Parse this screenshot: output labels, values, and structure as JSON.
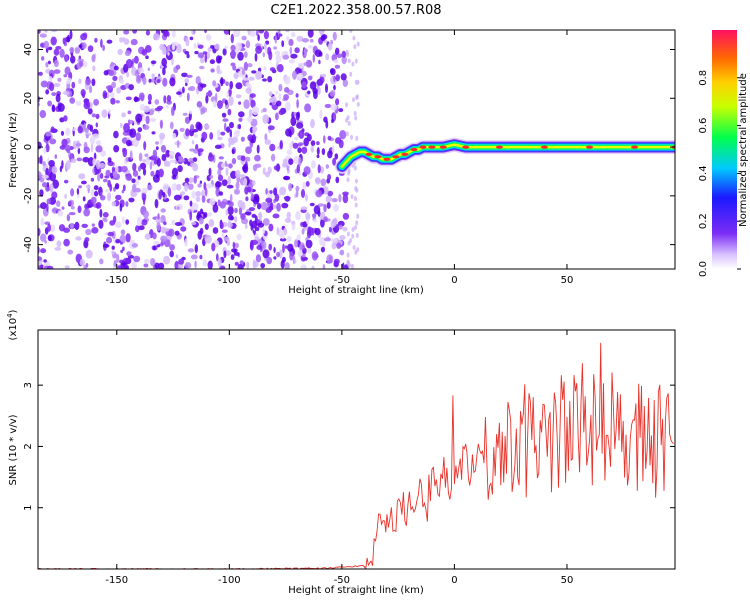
{
  "title": "C2E1.2022.358.00.57.R08",
  "chart_data": [
    {
      "type": "heatmap",
      "xlabel": "Height of straight line (km)",
      "ylabel": "Frequency (Hz)",
      "xlim": [
        -185,
        98
      ],
      "ylim": [
        -50,
        48
      ],
      "xticks": [
        -150,
        -100,
        -50,
        0,
        50
      ],
      "yticks": [
        -40,
        -20,
        0,
        20,
        40
      ],
      "noise_region_x": [
        -185,
        -48
      ],
      "ridge": {
        "x": [
          -50,
          -48,
          -46,
          -44,
          -42,
          -40,
          -38,
          -36,
          -34,
          -32,
          -30,
          -28,
          -26,
          -24,
          -22,
          -20,
          -18,
          -16,
          -14,
          -12,
          -10,
          -8,
          -5,
          0,
          5,
          10,
          20,
          30,
          40,
          50,
          60,
          70,
          80,
          90,
          98
        ],
        "freq": [
          -8,
          -6,
          -4,
          -3,
          -2,
          -2,
          -3,
          -4,
          -4,
          -5,
          -5,
          -5,
          -4,
          -3,
          -3,
          -2,
          -1,
          -1,
          0,
          0,
          0,
          0,
          0,
          1,
          0,
          0,
          0,
          0,
          0,
          0,
          0,
          0,
          0,
          0,
          0
        ]
      },
      "colorbar": {
        "label": "Normalized spectral amplitude",
        "ticks": [
          0.0,
          0.2,
          0.4,
          0.6,
          0.8
        ],
        "range": [
          0,
          1
        ]
      }
    },
    {
      "type": "line",
      "xlabel": "Height of straight line (km)",
      "ylabel": "SNR (10 * v/v)",
      "scale_label": "(x10",
      "scale_exponent": "4",
      "scale_close": ")",
      "xlim": [
        -185,
        98
      ],
      "ylim": [
        0,
        3.9
      ],
      "xticks": [
        -150,
        -100,
        -50,
        0,
        50
      ],
      "yticks": [
        1,
        2,
        3
      ],
      "color": "#e8322a",
      "x": [
        -185,
        -150,
        -100,
        -60,
        -40,
        -37,
        -35,
        -33,
        -31,
        -30,
        -28,
        -26,
        -24,
        -22,
        -20,
        -18,
        -16,
        -14,
        -12,
        -10,
        -8,
        -6,
        -4,
        -2,
        0,
        2,
        5,
        8,
        10,
        15,
        20,
        25,
        30,
        35,
        40,
        45,
        50,
        55,
        60,
        65,
        70,
        75,
        80,
        85,
        90,
        95,
        98
      ],
      "y": [
        0.0,
        0.0,
        0.0,
        0.01,
        0.05,
        0.2,
        0.45,
        0.9,
        0.7,
        1.0,
        0.85,
        0.95,
        1.05,
        0.9,
        1.1,
        0.95,
        1.2,
        1.05,
        1.1,
        1.4,
        1.3,
        1.5,
        1.6,
        1.45,
        1.7,
        1.75,
        1.8,
        1.65,
        1.9,
        1.8,
        1.95,
        2.05,
        2.1,
        2.0,
        2.15,
        2.2,
        2.25,
        2.3,
        2.2,
        2.35,
        2.25,
        2.3,
        2.2,
        2.25,
        2.1,
        2.2,
        2.3
      ]
    }
  ]
}
